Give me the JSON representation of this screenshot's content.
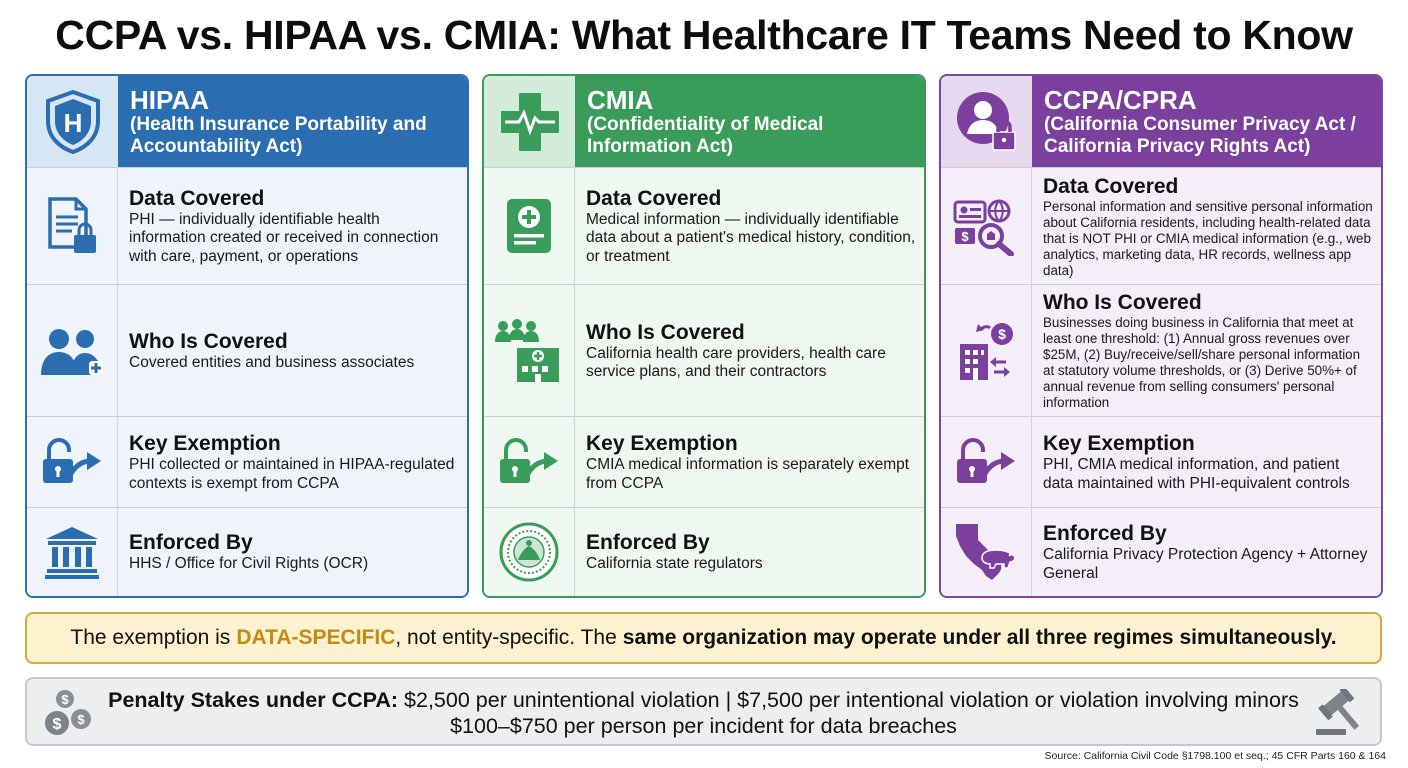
{
  "title": "CCPA vs. HIPAA vs. CMIA: What Healthcare IT Teams Need to Know",
  "colors": {
    "hipaa": "#2a6db0",
    "cmia": "#3a9c5b",
    "ccpa": "#7b3f9e",
    "highlight": "#c48a12"
  },
  "columns": [
    {
      "name": "HIPAA",
      "full_name": "(Health Insurance Portability and Accountability Act)",
      "header_icon": "shield-icon",
      "rows": [
        {
          "heading": "Data Covered",
          "icon": "document-lock-icon",
          "body": "PHI — individually identifiable health information created or received in connection with care, payment, or operations"
        },
        {
          "heading": "Who Is Covered",
          "icon": "people-icon",
          "body": "Covered entities and business associates"
        },
        {
          "heading": "Key Exemption",
          "icon": "unlock-arrow-icon",
          "body": "PHI collected or maintained in HIPAA-regulated contexts is exempt from CCPA"
        },
        {
          "heading": "Enforced By",
          "icon": "government-building-icon",
          "body": "HHS / Office for Civil Rights (OCR)"
        }
      ]
    },
    {
      "name": "CMIA",
      "full_name": "(Confidentiality of Medical Information Act)",
      "header_icon": "medical-cross-icon",
      "rows": [
        {
          "heading": "Data Covered",
          "icon": "medical-record-icon",
          "body": "Medical information — individually identifiable data about a patient's medical history, condition, or treatment"
        },
        {
          "heading": "Who Is Covered",
          "icon": "hospital-people-icon",
          "body": "California health care providers, health care service plans, and their contractors"
        },
        {
          "heading": "Key Exemption",
          "icon": "unlock-arrow-icon",
          "body": "CMIA medical information is separately exempt from CCPA"
        },
        {
          "heading": "Enforced By",
          "icon": "state-seal-icon",
          "body": "California state regulators"
        }
      ]
    },
    {
      "name": "CCPA/CPRA",
      "full_name": "(California Consumer Privacy Act / California Privacy Rights Act)",
      "header_icon": "person-lock-icon",
      "rows": [
        {
          "heading": "Data Covered",
          "icon": "id-search-icon",
          "body": "Personal information and sensitive personal information about California residents, including health-related data that is NOT PHI or CMIA medical information (e.g., web analytics, marketing data, HR records, wellness app data)"
        },
        {
          "heading": "Who Is Covered",
          "icon": "business-revenue-icon",
          "body": "Businesses doing business in California that meet at least one threshold: (1) Annual gross revenues over $25M, (2) Buy/receive/sell/share personal information at statutory volume thresholds, or (3) Derive 50%+ of annual revenue from selling consumers' personal information"
        },
        {
          "heading": "Key Exemption",
          "icon": "unlock-arrow-icon",
          "body": "PHI, CMIA medical information, and patient data maintained with PHI-equivalent controls"
        },
        {
          "heading": "Enforced By",
          "icon": "california-bear-icon",
          "body": "California Privacy Protection Agency + Attorney General"
        }
      ]
    }
  ],
  "banner": {
    "part1": "The exemption is",
    "highlight": "DATA-SPECIFIC",
    "part2": ", not entity-specific. The",
    "bold": "same organization may operate under all three regimes simultaneously."
  },
  "penalty": {
    "label": "Penalty Stakes under CCPA:",
    "line1": "$2,500 per unintentional violation | $7,500 per intentional violation or violation involving minors",
    "line2": "$100–$750 per person per incident for data breaches"
  },
  "source": "Source: California Civil Code §1798.100 et seq.; 45 CFR Parts 160 & 164"
}
